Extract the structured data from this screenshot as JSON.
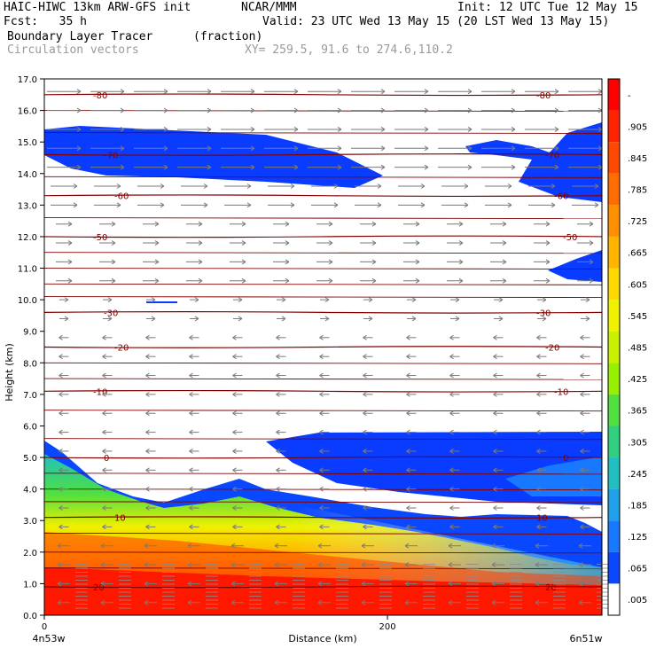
{
  "header": {
    "line1_left": "HAIC-HIWC 13km ARW-GFS init",
    "line1_mid": "NCAR/MMM",
    "line1_right": "Init: 12 UTC Tue 12 May 15",
    "fcst": "Fcst:   35 h",
    "valid": "Valid: 23 UTC Wed 13 May 15 (20 LST Wed 13 May 15)",
    "field": "Boundary Layer Tracer",
    "units": "(fraction)",
    "overlay": "Circulation vectors",
    "xy": "XY= 259.5, 91.6 to 274.6,110.2"
  },
  "chart_data": {
    "type": "heatmap",
    "title": "Boundary Layer Tracer (fraction)",
    "ylabel": "Height (km)",
    "xlabel": "Distance (km)",
    "ylim": [
      0,
      17
    ],
    "xlim": [
      0,
      325
    ],
    "y_ticks": [
      "0.0",
      "1.0",
      "2.0",
      "3.0",
      "4.0",
      "5.0",
      "6.0",
      "7.0",
      "8.0",
      "9.0",
      "10.0",
      "11.0",
      "12.0",
      "13.0",
      "14.0",
      "15.0",
      "16.0",
      "17.0"
    ],
    "x_ticks": [
      {
        "value": 0,
        "label": "0"
      },
      {
        "value": 200,
        "label": "200"
      }
    ],
    "x_endpoints": {
      "left": "4n53w",
      "right": "6n51w"
    },
    "colorbar": {
      "labels": [
        "-",
        ".905",
        ".845",
        ".785",
        ".725",
        ".665",
        ".605",
        ".545",
        ".485",
        ".425",
        ".365",
        ".305",
        ".245",
        ".185",
        ".125",
        ".065",
        ".005"
      ],
      "colors": [
        "#ff0000",
        "#ff2400",
        "#ff4800",
        "#ff6c00",
        "#ff9000",
        "#ffb400",
        "#ffd800",
        "#f0f000",
        "#c8f000",
        "#96f000",
        "#50e040",
        "#30d080",
        "#20c0c0",
        "#20a0e8",
        "#1878ff",
        "#0a48ff",
        "#ffffff"
      ]
    },
    "temperature_contours": [
      {
        "label": "-80",
        "height": 16.5
      },
      {
        "label": "-70",
        "height": 14.6
      },
      {
        "label": "-60",
        "height": 13.3
      },
      {
        "label": "-50",
        "height": 12.0
      },
      {
        "label": "-30",
        "height": 9.6
      },
      {
        "label": "-20",
        "height": 8.5
      },
      {
        "label": "-10",
        "height": 7.1
      },
      {
        "label": "0",
        "height": 5.0
      },
      {
        "label": "10",
        "height": 3.1
      },
      {
        "label": "20",
        "height": 0.9
      }
    ]
  }
}
